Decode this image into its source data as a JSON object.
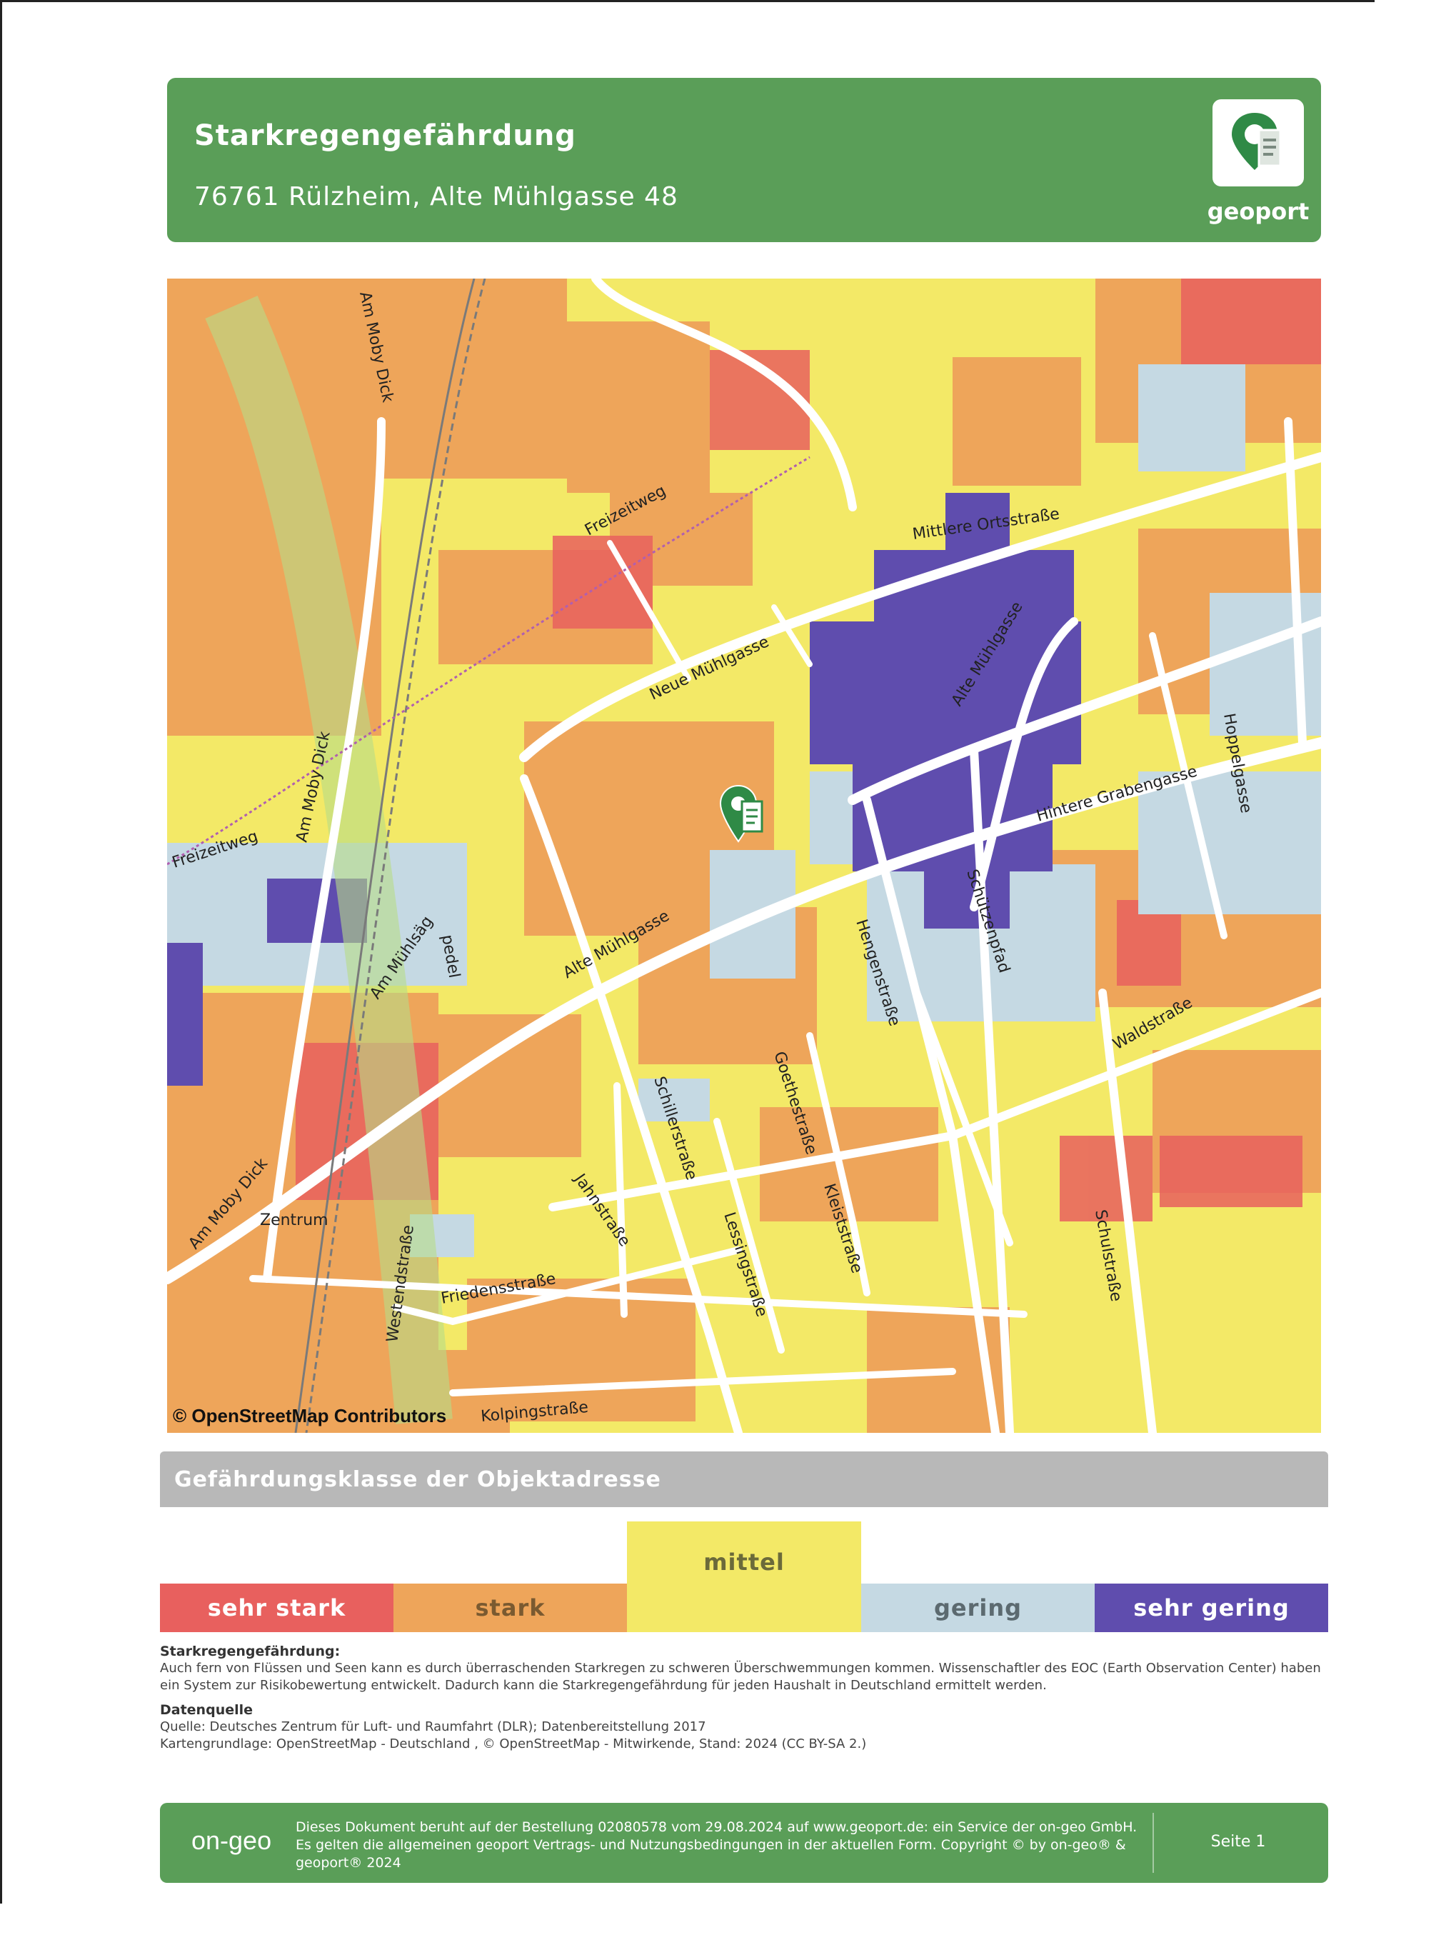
{
  "header": {
    "title": "Starkregengefährdung",
    "address": "76761 Rülzheim, Alte Mühlgasse 48",
    "logo_text": "geoport",
    "logo_icon": "map-pin-document-icon"
  },
  "map": {
    "attribution": "© OpenStreetMap Contributors",
    "marker_icon": "map-pin-icon",
    "streets": {
      "am_moby_dick_1": "Am Moby Dick",
      "am_moby_dick_2": "Am Moby Dick",
      "am_moby_dick_3": "Am Moby Dick",
      "freizeitweg_1": "Freizeitweg",
      "freizeitweg_2": "Freizeitweg",
      "mittlere_ortsstrasse": "Mittlere Ortsstraße",
      "neue_muehlgasse": "Neue Mühlgasse",
      "alte_muehlgasse_1": "Alte Mühlgasse",
      "alte_muehlgasse_2": "Alte Mühlgasse",
      "hoppelgasse": "Hoppelgasse",
      "hintere_grabengasse": "Hintere Grabengasse",
      "am_muehlsaeg": "Am Mühlsäg",
      "pedel": "pedel",
      "hengenstrasse": "Hengenstraße",
      "schuetzenpfad": "Schützenpfad",
      "waldstrasse": "Waldstraße",
      "goethestrasse": "Goethestraße",
      "schillerstrasse": "Schillerstraße",
      "kleiststrasse": "Kleiststraße",
      "jahnstrasse": "Jahnstraße",
      "lessingstrasse": "Lessingstraße",
      "westendstrasse": "Westendstraße",
      "friedensstrasse": "Friedensstraße",
      "schulstrasse": "Schulstraße",
      "kolpingstrasse": "Kolpingstraße",
      "zentrum": "Zentrum"
    }
  },
  "hazard": {
    "section_title": "Gefährdungsklasse der Objektadresse",
    "classes": [
      {
        "label": "sehr stark",
        "color": "#e8605e"
      },
      {
        "label": "stark",
        "color": "#eea55a"
      },
      {
        "label": "mittel",
        "color": "#f3e967"
      },
      {
        "label": "gering",
        "color": "#c5d9e3"
      },
      {
        "label": "sehr gering",
        "color": "#5f4dae"
      }
    ],
    "active_class": "mittel"
  },
  "description": {
    "heading": "Starkregengefährdung:",
    "text": "Auch fern von Flüssen und Seen kann es durch überraschenden Starkregen zu schweren Überschwemmungen kommen. Wissenschaftler des EOC (Earth Observation Center) haben ein System zur Risikobewertung entwickelt. Dadurch kann die Starkregengefährdung für jeden Haushalt in Deutschland ermittelt werden."
  },
  "datasource": {
    "heading": "Datenquelle",
    "line1": "Quelle: Deutsches Zentrum für Luft- und Raumfahrt (DLR); Datenbereitstellung 2017",
    "line2": "Kartengrundlage: OpenStreetMap - Deutschland , © OpenStreetMap - Mitwirkende, Stand: 2024 (CC BY-SA 2.)"
  },
  "footer": {
    "logo": "on-geo",
    "text": "Dieses Dokument beruht auf der Bestellung 02080578 vom 29.08.2024 auf www.geoport.de: ein Service der on-geo GmbH. Es gelten die allgemeinen geoport Vertrags- und Nutzungsbedingungen in der aktuellen Form. Copyright © by on-geo® & geoport® 2024",
    "page": "Seite 1"
  },
  "colors": {
    "brand_green": "#5a9e58",
    "section_grey": "#b8b8b8"
  }
}
